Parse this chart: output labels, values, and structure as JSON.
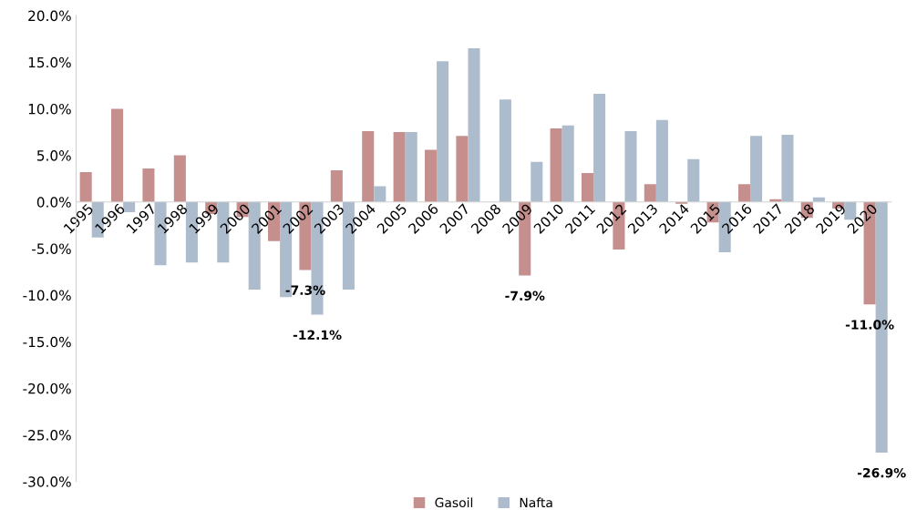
{
  "chart_data": {
    "type": "bar",
    "categories": [
      "1995",
      "1996",
      "1997",
      "1998",
      "1999",
      "2000",
      "2001",
      "2002",
      "2003",
      "2004",
      "2005",
      "2006",
      "2007",
      "2008",
      "2009",
      "2010",
      "2011",
      "2012",
      "2013",
      "2014",
      "2015",
      "2016",
      "2017",
      "2018",
      "2019",
      "2020"
    ],
    "series": [
      {
        "name": "Gasoil",
        "color": "#c48f8d",
        "values": [
          3.2,
          10.0,
          3.6,
          5.0,
          -1.3,
          -1.6,
          -4.2,
          -7.3,
          3.4,
          7.6,
          7.5,
          5.6,
          7.1,
          0,
          -7.9,
          7.9,
          3.1,
          -5.1,
          1.9,
          -0.2,
          -2.2,
          1.9,
          0.3,
          -1.7,
          -0.7,
          -11.0
        ],
        "value_labels": [
          null,
          null,
          null,
          null,
          null,
          null,
          null,
          "-7.3%",
          null,
          null,
          null,
          null,
          null,
          null,
          "-7.9%",
          null,
          null,
          null,
          null,
          null,
          null,
          null,
          null,
          null,
          null,
          "-11.0%"
        ]
      },
      {
        "name": "Nafta",
        "color": "#adbccd",
        "values": [
          -3.8,
          -1.1,
          -6.8,
          -6.5,
          -6.5,
          -9.4,
          -10.2,
          -12.1,
          -9.4,
          1.7,
          7.5,
          15.1,
          16.5,
          11.0,
          4.3,
          8.2,
          11.6,
          7.6,
          8.8,
          4.6,
          -5.4,
          7.1,
          7.2,
          0.5,
          -1.9,
          -26.9
        ],
        "value_labels": [
          null,
          null,
          null,
          null,
          null,
          null,
          null,
          "-12.1%",
          null,
          null,
          null,
          null,
          null,
          null,
          null,
          null,
          null,
          null,
          null,
          null,
          null,
          null,
          null,
          null,
          null,
          "-26.9%"
        ]
      }
    ],
    "ylim": [
      -30,
      20
    ],
    "yticks": [
      {
        "value": -30,
        "label": "-30.0%"
      },
      {
        "value": -25,
        "label": "-25.0%"
      },
      {
        "value": -20,
        "label": "-20.0%"
      },
      {
        "value": -15,
        "label": "-15.0%"
      },
      {
        "value": -10,
        "label": "-10.0%"
      },
      {
        "value": -5,
        "label": "-5.0%"
      },
      {
        "value": 0,
        "label": "0.0%"
      },
      {
        "value": 5,
        "label": "5.0%"
      },
      {
        "value": 10,
        "label": "10.0%"
      },
      {
        "value": 15,
        "label": "15.0%"
      },
      {
        "value": 20,
        "label": "20.0%"
      }
    ],
    "grid": false,
    "legend": "bottom"
  }
}
